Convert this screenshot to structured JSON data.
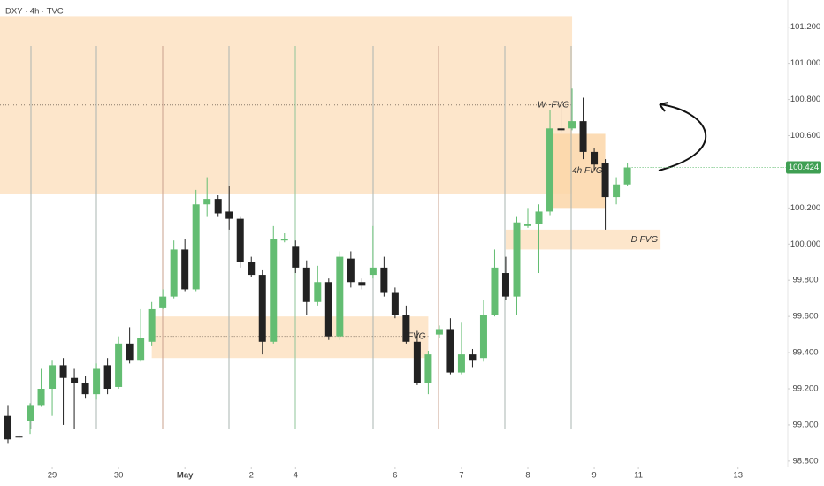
{
  "chart_data": {
    "type": "candlestick",
    "title": "DXY · 4h · TVC",
    "open": [
      99.05,
      98.94,
      99.02,
      99.11,
      99.2,
      99.33,
      99.26,
      99.23,
      99.17,
      99.33,
      99.21,
      99.45,
      99.36,
      99.46,
      99.65,
      99.71,
      99.97,
      99.75,
      100.22,
      100.25,
      100.18,
      100.14,
      99.9,
      99.83,
      99.46,
      100.02,
      99.99,
      99.87,
      99.68,
      99.79,
      99.49,
      99.92,
      99.79,
      99.83,
      99.87,
      99.73,
      99.61,
      99.46,
      99.23,
      99.5,
      99.53,
      99.29,
      99.39,
      99.37,
      99.61,
      99.84,
      99.71,
      100.1,
      100.11,
      100.18,
      100.64,
      100.64,
      100.68,
      100.51,
      100.45,
      100.26,
      100.33
    ],
    "high": [
      99.11,
      98.95,
      99.12,
      99.31,
      99.36,
      99.37,
      99.31,
      99.27,
      99.34,
      99.37,
      99.49,
      99.54,
      99.64,
      99.68,
      99.75,
      100.02,
      100.03,
      100.3,
      100.37,
      100.27,
      100.32,
      100.15,
      99.93,
      99.86,
      100.1,
      100.06,
      100.02,
      99.91,
      99.88,
      99.81,
      99.96,
      99.96,
      99.81,
      100.1,
      99.93,
      99.76,
      99.66,
      99.52,
      99.41,
      99.55,
      99.59,
      99.57,
      99.42,
      99.69,
      99.97,
      99.93,
      100.15,
      100.2,
      100.22,
      100.74,
      100.79,
      100.86,
      100.81,
      100.53,
      100.47,
      100.37,
      100.45
    ],
    "low": [
      98.9,
      98.92,
      98.95,
      99.1,
      99.05,
      99.0,
      98.98,
      99.15,
      99.14,
      99.17,
      99.2,
      99.34,
      99.35,
      99.44,
      99.64,
      99.7,
      99.74,
      99.74,
      100.15,
      100.15,
      100.08,
      99.87,
      99.82,
      99.39,
      99.45,
      100.01,
      99.84,
      99.61,
      99.66,
      99.47,
      99.47,
      99.76,
      99.75,
      99.81,
      99.71,
      99.59,
      99.45,
      99.22,
      99.17,
      99.48,
      99.28,
      99.28,
      99.32,
      99.35,
      99.6,
      99.69,
      99.61,
      100.09,
      99.84,
      100.16,
      100.62,
      100.63,
      100.47,
      100.41,
      100.08,
      100.22,
      100.32
    ],
    "close": [
      98.92,
      98.93,
      99.11,
      99.2,
      99.33,
      99.26,
      99.23,
      99.17,
      99.31,
      99.2,
      99.45,
      99.36,
      99.48,
      99.64,
      99.71,
      99.97,
      99.75,
      100.22,
      100.25,
      100.17,
      100.14,
      99.9,
      99.83,
      99.46,
      100.03,
      100.03,
      99.87,
      99.68,
      99.79,
      99.49,
      99.93,
      99.79,
      99.77,
      99.87,
      99.73,
      99.61,
      99.46,
      99.23,
      99.39,
      99.53,
      99.29,
      99.39,
      99.36,
      99.61,
      99.87,
      99.71,
      100.12,
      100.11,
      100.18,
      100.64,
      100.63,
      100.68,
      100.51,
      100.44,
      100.26,
      100.33,
      100.424
    ],
    "up_color": "#63bd72",
    "down_color": "#222222",
    "xlim": [
      -0.72,
      70.5
    ],
    "xticks": [
      {
        "value": 4,
        "label": "29"
      },
      {
        "value": 10,
        "label": "30"
      },
      {
        "value": 16,
        "label": "May"
      },
      {
        "value": 22,
        "label": "2"
      },
      {
        "value": 26,
        "label": "4"
      },
      {
        "value": 35,
        "label": "6"
      },
      {
        "value": 41,
        "label": "7"
      },
      {
        "value": 47,
        "label": "8"
      },
      {
        "value": 53,
        "label": "9"
      },
      {
        "value": 57,
        "label": "11"
      },
      {
        "value": 66,
        "label": "13"
      }
    ],
    "ylim": [
      98.77,
      101.35
    ],
    "yticks": [
      {
        "value": 101.2,
        "label": "101.200"
      },
      {
        "value": 101.0,
        "label": "101.000"
      },
      {
        "value": 100.8,
        "label": "100.800"
      },
      {
        "value": 100.6,
        "label": "100.600"
      },
      {
        "value": 100.2,
        "label": "100.200"
      },
      {
        "value": 100.0,
        "label": "100.000"
      },
      {
        "value": 99.8,
        "label": "99.800"
      },
      {
        "value": 99.6,
        "label": "99.600"
      },
      {
        "value": 99.4,
        "label": "99.400"
      },
      {
        "value": 99.2,
        "label": "99.200"
      },
      {
        "value": 99.0,
        "label": "99.000"
      },
      {
        "value": 98.8,
        "label": "98.800"
      }
    ],
    "zones": [
      {
        "label": "W -FVG",
        "range": [
          100.28,
          101.26
        ],
        "x": [
          -0.72,
          51
        ],
        "midline": 100.77,
        "color": "#fde2c2"
      },
      {
        "label": "4h FVG",
        "range": [
          100.2,
          100.61
        ],
        "x": [
          49,
          54
        ],
        "color": "#fcd6a8"
      },
      {
        "label": "D FVG",
        "range": [
          99.97,
          100.08
        ],
        "x": [
          45,
          59
        ],
        "color": "#fde2c2"
      },
      {
        "label": "FVG",
        "range": [
          99.37,
          99.6
        ],
        "x": [
          13,
          38
        ],
        "midline": 99.49,
        "color": "#fde2c2"
      }
    ]
  }
}
